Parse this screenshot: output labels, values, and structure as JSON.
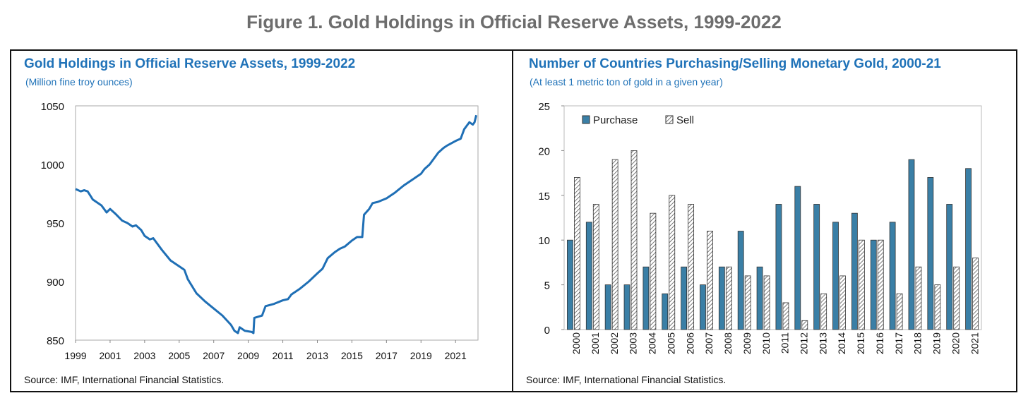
{
  "figure_title": "Figure 1. Gold Holdings in Official Reserve Assets, 1999-2022",
  "chart_data": [
    {
      "type": "line",
      "title": "Gold Holdings in Official Reserve Assets, 1999-2022",
      "subtitle": "(Million fine troy ounces)",
      "ylim": [
        850,
        1050
      ],
      "yticks": [
        850,
        900,
        950,
        1000,
        1050
      ],
      "xlim": [
        1999,
        2022.3
      ],
      "xticks": [
        1999,
        2001,
        2003,
        2005,
        2007,
        2009,
        2011,
        2013,
        2015,
        2017,
        2019,
        2021
      ],
      "color": "#1f6fb5",
      "x": [
        1999,
        1999.3,
        1999.5,
        1999.7,
        2000,
        2000.5,
        2000.8,
        2001,
        2001.3,
        2001.7,
        2002,
        2002.3,
        2002.5,
        2002.8,
        2003,
        2003.3,
        2003.5,
        2004,
        2004.5,
        2005,
        2005.3,
        2005.5,
        2006,
        2006.5,
        2007,
        2007.5,
        2008,
        2008.2,
        2008.4,
        2008.5,
        2008.8,
        2009.2,
        2009.3,
        2009.35,
        2009.8,
        2010,
        2010.5,
        2011,
        2011.3,
        2011.5,
        2012,
        2012.5,
        2013,
        2013.3,
        2013.6,
        2014,
        2014.3,
        2014.6,
        2015,
        2015.3,
        2015.6,
        2015.7,
        2016,
        2016.2,
        2016.5,
        2017,
        2017.5,
        2018,
        2018.5,
        2019,
        2019.2,
        2019.5,
        2020,
        2020.3,
        2020.5,
        2021,
        2021.3,
        2021.5,
        2021.8,
        2022,
        2022.1,
        2022.2
      ],
      "y": [
        979,
        977,
        978,
        977,
        970,
        965,
        959,
        962,
        958,
        952,
        950,
        947,
        948,
        944,
        939,
        936,
        937,
        927,
        918,
        913,
        910,
        902,
        890,
        883,
        877,
        871,
        863,
        858,
        856,
        861,
        858,
        857,
        856,
        869,
        871,
        879,
        881,
        884,
        885,
        889,
        894,
        900,
        907,
        911,
        920,
        925,
        928,
        930,
        935,
        938,
        938,
        957,
        962,
        967,
        968,
        971,
        976,
        982,
        987,
        992,
        996,
        1000,
        1010,
        1014,
        1016,
        1020,
        1022,
        1030,
        1036,
        1034,
        1036,
        1042
      ],
      "source": "Source: IMF, International Financial Statistics."
    },
    {
      "type": "bar",
      "title": "Number of Countries Purchasing/Selling Monetary Gold, 2000-21",
      "subtitle": "(At least 1 metric ton of gold in a given year)",
      "ylim": [
        0,
        25
      ],
      "yticks": [
        0,
        5,
        10,
        15,
        20,
        25
      ],
      "categories": [
        "2000",
        "2001",
        "2002",
        "2003",
        "2004",
        "2005",
        "2006",
        "2007",
        "2008",
        "2009",
        "2010",
        "2011",
        "2012",
        "2013",
        "2014",
        "2015",
        "2016",
        "2017",
        "2018",
        "2019",
        "2020",
        "2021"
      ],
      "series": [
        {
          "name": "Purchase",
          "color": "#3a7fa6",
          "values": [
            10,
            12,
            5,
            5,
            7,
            4,
            7,
            5,
            7,
            11,
            7,
            14,
            16,
            14,
            12,
            13,
            10,
            12,
            19,
            17,
            14,
            18
          ]
        },
        {
          "name": "Sell",
          "color": "#ffffff",
          "pattern": "hatch",
          "values": [
            17,
            14,
            19,
            20,
            13,
            15,
            14,
            11,
            7,
            6,
            6,
            3,
            1,
            4,
            6,
            10,
            10,
            4,
            7,
            5,
            7,
            8
          ]
        }
      ],
      "legend": "top-left",
      "source": "Source: IMF, International Financial Statistics."
    }
  ]
}
